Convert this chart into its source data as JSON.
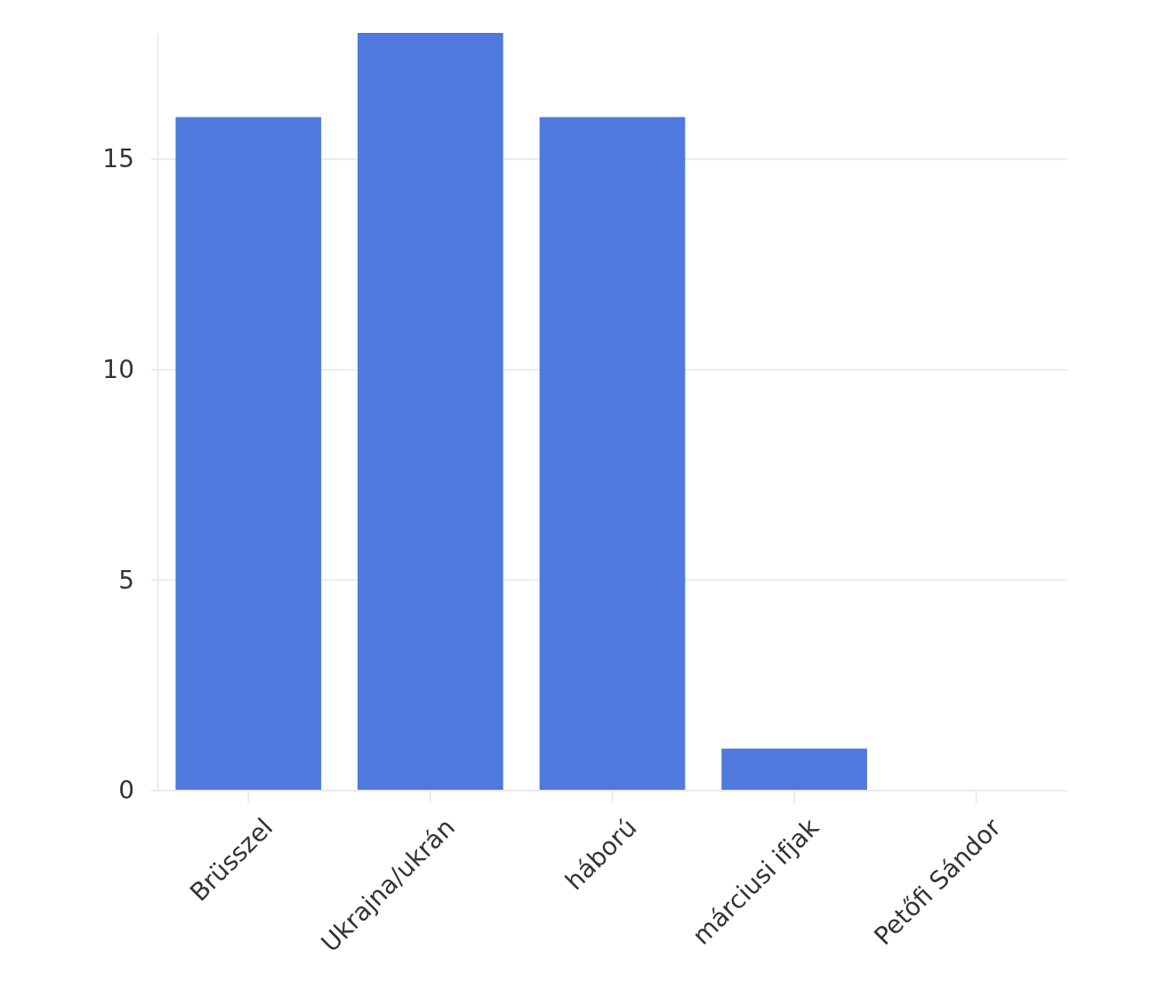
{
  "chart_data": {
    "type": "bar",
    "categories": [
      "Brüsszel",
      "Ukrajna/ukrán",
      "háború",
      "márciusi ifjak",
      "Petőfi Sándor"
    ],
    "values": [
      16,
      18,
      16,
      1,
      0
    ],
    "color": "#4f79dc",
    "ylim": [
      0,
      18
    ],
    "yticks": [
      0,
      5,
      10,
      15
    ],
    "grid": "y"
  }
}
